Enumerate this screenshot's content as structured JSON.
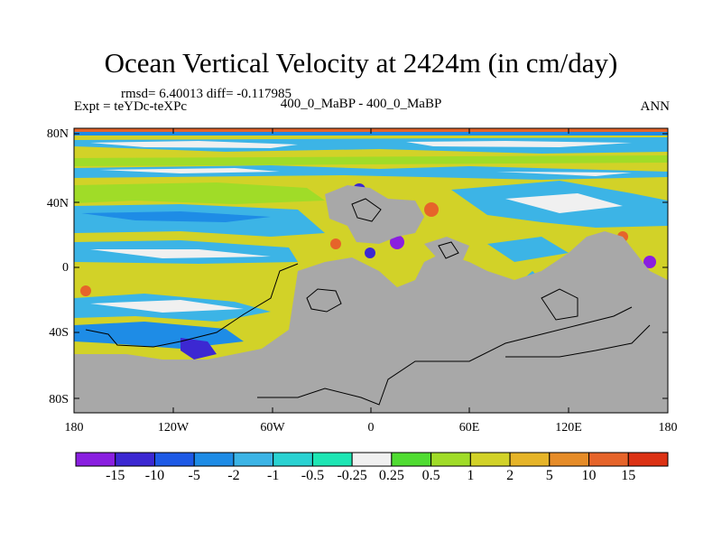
{
  "title": "Ocean Vertical Velocity at 2424m (in cm/day)",
  "stats": "rmsd= 6.40013  diff= -0.117985",
  "experiment": "Expt = teYDc-teXPc",
  "case_label": "400_0_MaBP - 400_0_MaBP",
  "season": "ANN",
  "lat_ticks": [
    "80N",
    "40N",
    "0",
    "40S",
    "80S"
  ],
  "lon_ticks": [
    "180",
    "120W",
    "60W",
    "0",
    "60E",
    "120E",
    "180"
  ],
  "colorbar": {
    "labels": [
      "-15",
      "-10",
      "-5",
      "-2",
      "-1",
      "-0.5",
      "-0.25",
      "0.25",
      "0.5",
      "1",
      "2",
      "5",
      "10",
      "15"
    ],
    "colors": [
      "#8a1fe0",
      "#3c28d2",
      "#1e5ae6",
      "#1e8ce6",
      "#3cb4e6",
      "#2ad2d2",
      "#1ee6b4",
      "#f0f0f0",
      "#50dc32",
      "#a0dc28",
      "#d2d228",
      "#e6b428",
      "#e68c28",
      "#e6642a",
      "#dc3214"
    ]
  },
  "colors": {
    "land": "#a8a8a8",
    "ocean_base": "#d2d228",
    "frame": "#000000"
  }
}
